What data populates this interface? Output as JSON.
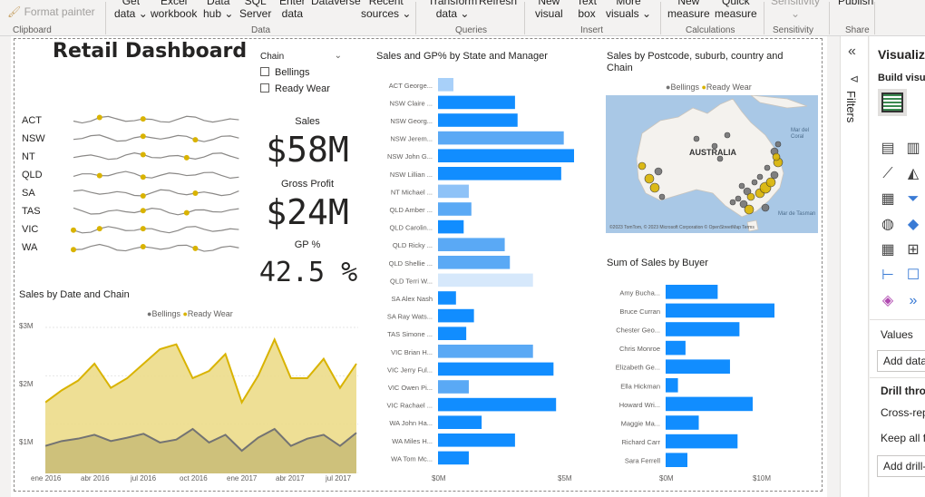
{
  "ribbon": {
    "format_painter": "Format painter",
    "get_data": [
      "Get",
      "data ⌄"
    ],
    "excel": [
      "Excel",
      "workbook"
    ],
    "data_hub": [
      "Data",
      "hub ⌄"
    ],
    "sql": [
      "SQL",
      "Server"
    ],
    "enter_data": [
      "Enter",
      "data"
    ],
    "dataverse": [
      "Dataverse",
      ""
    ],
    "recent_sources": [
      "Recent",
      "sources ⌄"
    ],
    "transform": [
      "Transform",
      "data ⌄"
    ],
    "refresh": [
      "Refresh",
      ""
    ],
    "new_visual": [
      "New",
      "visual"
    ],
    "text_box": [
      "Text",
      "box"
    ],
    "more_visuals": [
      "More",
      "visuals ⌄"
    ],
    "new_measure": [
      "New",
      "measure"
    ],
    "quick_measure": [
      "Quick",
      "measure"
    ],
    "sensitivity": [
      "Sensitivity",
      "⌄"
    ],
    "publish": [
      "Publish",
      ""
    ],
    "groups": {
      "clipboard": "Clipboard",
      "data": "Data",
      "queries": "Queries",
      "insert": "Insert",
      "calculations": "Calculations",
      "sensitivity": "Sensitivity",
      "share": "Share"
    }
  },
  "dashboard": {
    "title": "Retail Dashboard",
    "slicer": {
      "title": "Chain",
      "options": [
        "Bellings",
        "Ready Wear"
      ]
    },
    "kpis": {
      "sales_label": "Sales",
      "sales_value": "$58M",
      "gp_label": "Gross Profit",
      "gp_value": "$24M",
      "gppct_label": "GP %",
      "gppct_value": "42.5 %"
    },
    "sparkline_states": [
      "ACT",
      "NSW",
      "NT",
      "QLD",
      "SA",
      "TAS",
      "VIC",
      "WA"
    ]
  },
  "area_chart": {
    "title": "Sales by Date and Chain",
    "legend": [
      "Bellings",
      "Ready Wear"
    ],
    "y_ticks": [
      "$3M",
      "$2M",
      "$1M"
    ],
    "x_ticks": [
      "ene 2016",
      "abr 2016",
      "jul 2016",
      "oct 2016",
      "ene 2017",
      "abr 2017",
      "jul 2017"
    ]
  },
  "bar_state": {
    "title": "Sales and GP% by State and Manager",
    "x_ticks": [
      "$0M",
      "$5M"
    ]
  },
  "map": {
    "title": "Sales by Postcode, suburb, country and Chain",
    "legend": [
      "Bellings",
      "Ready Wear"
    ],
    "country": "AUSTRALIA",
    "sea_labels": [
      "Mar del Coral",
      "Mar de Tasman"
    ],
    "attribution": "©2023 TomTom, © 2023 Microsoft Corporation  © OpenStreetMap  Terms"
  },
  "bar_buyer": {
    "title": "Sum of Sales by Buyer",
    "x_ticks": [
      "$0M",
      "$10M"
    ]
  },
  "chart_data": [
    {
      "type": "area",
      "title": "Sales by Date and Chain",
      "ylim": [
        0,
        3
      ],
      "series": [
        {
          "name": "Ready Wear",
          "values": [
            1.45,
            1.7,
            1.9,
            2.25,
            1.75,
            1.95,
            2.25,
            2.55,
            2.65,
            1.95,
            2.1,
            2.45,
            1.45,
            2.0,
            2.75,
            1.95,
            1.95,
            2.35,
            1.75,
            2.25
          ]
        },
        {
          "name": "Bellings",
          "values": [
            0.55,
            0.65,
            0.7,
            0.78,
            0.65,
            0.72,
            0.8,
            0.62,
            0.68,
            0.9,
            0.62,
            0.78,
            0.45,
            0.72,
            0.9,
            0.55,
            0.7,
            0.78,
            0.55,
            0.82
          ]
        }
      ]
    },
    {
      "type": "bar",
      "title": "Sales and GP% by State and Manager",
      "categories": [
        "ACT George...",
        "NSW Claire ...",
        "NSW Georg...",
        "NSW Jerem...",
        "NSW John G...",
        "NSW Lillian ...",
        "NT Michael ...",
        "QLD Amber ...",
        "QLD Carolin...",
        "QLD Ricky ...",
        "QLD Shellie ...",
        "QLD Terri W...",
        "SA Alex Nash",
        "SA Ray Wats...",
        "TAS Simone ...",
        "VIC Brian H...",
        "VIC Jerry Ful...",
        "VIC Owen Pi...",
        "VIC Rachael ...",
        "WA John Ha...",
        "WA Miles H...",
        "WA Tom Mc..."
      ],
      "values": [
        0.6,
        3.0,
        3.1,
        4.9,
        5.3,
        4.8,
        1.2,
        1.3,
        1.0,
        2.6,
        2.8,
        3.7,
        0.7,
        1.4,
        1.1,
        3.7,
        4.5,
        1.2,
        4.6,
        1.7,
        3.0,
        1.2
      ],
      "shade": [
        0.4,
        1,
        1,
        0.6,
        1,
        1,
        0.5,
        0.6,
        1,
        0.6,
        0.6,
        0.25,
        1,
        1,
        1,
        0.6,
        1,
        0.6,
        1,
        1,
        1,
        1
      ],
      "xlim": [
        0,
        5.3
      ]
    },
    {
      "type": "bar",
      "title": "Sum of Sales by Buyer",
      "categories": [
        "Amy Bucha...",
        "Bruce Curran",
        "Chester Geo...",
        "Chris Monroe",
        "Elizabeth Ge...",
        "Ella Hickman",
        "Howard Wri...",
        "Maggie Ma...",
        "Richard Carr",
        "Sara Ferrell"
      ],
      "values": [
        5.5,
        11.5,
        7.8,
        2.1,
        6.8,
        1.3,
        9.2,
        3.5,
        7.6,
        2.3
      ],
      "xlim": [
        0,
        11.5
      ]
    }
  ],
  "panes": {
    "filters": "Filters",
    "viz_title": "Visualiz",
    "build": "Build visu",
    "values": "Values",
    "add_data": "Add data",
    "drill": "Drill thro",
    "cross": "Cross-rep",
    "keep": "Keep all f",
    "add_drill": "Add drill-"
  },
  "colors": {
    "gold": "#d9b300",
    "gold_fill": "#ecdc8a",
    "gray": "#737373",
    "bar": "#118dff"
  }
}
